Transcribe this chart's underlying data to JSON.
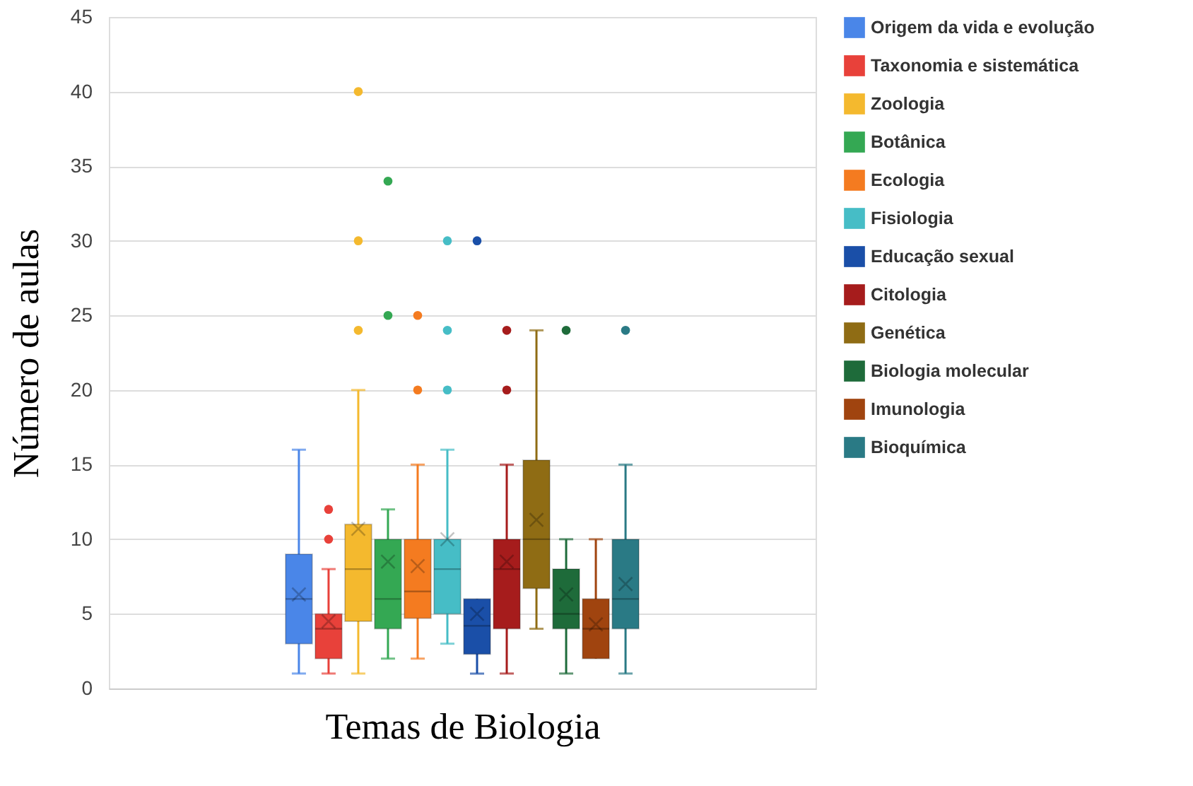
{
  "chart_data": {
    "type": "box",
    "xlabel": "Temas de Biologia",
    "ylabel": "Número de aulas",
    "categories": [
      null
    ],
    "series": [
      {
        "name": "Origem da vida e evolução",
        "color": "#4a86e8",
        "boxes": [
          {
            "low": 1,
            "q1": 3,
            "median": 6,
            "q3": 9,
            "high": 16,
            "mean": 6.3
          }
        ]
      },
      {
        "name": "Taxonomia e sistemática",
        "color": "#e8413a",
        "boxes": [
          {
            "low": 1,
            "q1": 2,
            "median": 4,
            "q3": 5,
            "high": 8,
            "mean": 4.5,
            "outliers": [
              10,
              12
            ]
          }
        ]
      },
      {
        "name": "Zoologia",
        "color": "#f4b92e",
        "boxes": [
          {
            "low": 1,
            "q1": 4.5,
            "median": 8,
            "q3": 11,
            "high": 20,
            "mean": 10.7,
            "outliers": [
              24,
              30,
              40
            ]
          }
        ]
      },
      {
        "name": "Botânica",
        "color": "#34a853",
        "boxes": [
          {
            "low": 2,
            "q1": 4,
            "median": 6,
            "q3": 10,
            "high": 12,
            "mean": 8.5,
            "outliers": [
              25,
              34
            ]
          }
        ]
      },
      {
        "name": "Ecologia",
        "color": "#f47b20",
        "boxes": [
          {
            "low": 2,
            "q1": 4.7,
            "median": 6.5,
            "q3": 10,
            "high": 15,
            "mean": 8.2,
            "outliers": [
              20,
              25
            ]
          }
        ]
      },
      {
        "name": "Fisiologia",
        "color": "#46bdc6",
        "boxes": [
          {
            "low": 3,
            "q1": 5,
            "median": 8,
            "q3": 10,
            "high": 16,
            "mean": 10,
            "outliers": [
              20,
              24,
              30
            ]
          }
        ]
      },
      {
        "name": "Educação sexual",
        "color": "#1a4fa8",
        "boxes": [
          {
            "low": 1,
            "q1": 2.3,
            "median": 4.2,
            "q3": 6,
            "high": 6,
            "mean": 5,
            "outliers": [
              30
            ]
          }
        ]
      },
      {
        "name": "Citologia",
        "color": "#a61c1c",
        "boxes": [
          {
            "low": 1,
            "q1": 4,
            "median": 8,
            "q3": 10,
            "high": 15,
            "mean": 8.5,
            "outliers": [
              20,
              24
            ]
          }
        ]
      },
      {
        "name": "Genética",
        "color": "#8f6c14",
        "boxes": [
          {
            "low": 4,
            "q1": 6.7,
            "median": 10,
            "q3": 15.3,
            "high": 24,
            "mean": 11.3
          }
        ]
      },
      {
        "name": "Biologia molecular",
        "color": "#1e6b3a",
        "boxes": [
          {
            "low": 1,
            "q1": 4,
            "median": 5,
            "q3": 8,
            "high": 10,
            "mean": 6.3,
            "outliers": [
              24
            ]
          }
        ]
      },
      {
        "name": "Imunologia",
        "color": "#a0440f",
        "boxes": [
          {
            "low": 2,
            "q1": 2,
            "median": 4,
            "q3": 6,
            "high": 10,
            "mean": 4.3
          }
        ]
      },
      {
        "name": "Bioquímica",
        "color": "#2a7a85",
        "boxes": [
          {
            "low": 1,
            "q1": 4,
            "median": 6,
            "q3": 10,
            "high": 15,
            "mean": 7,
            "outliers": [
              24
            ]
          }
        ]
      }
    ],
    "ylim": [
      0,
      45
    ],
    "yticks": [
      0,
      5,
      10,
      15,
      20,
      25,
      30,
      35,
      40,
      45
    ],
    "grid": "y",
    "legend": "right",
    "tick_labels": "y"
  }
}
